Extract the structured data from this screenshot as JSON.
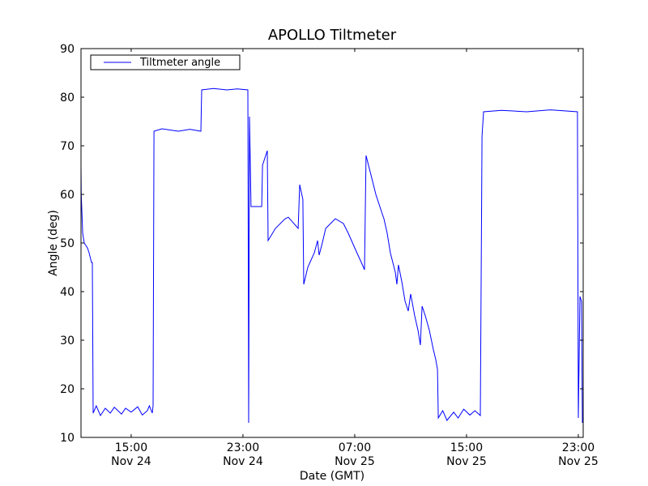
{
  "chart_data": {
    "type": "line",
    "title": "APOLLO Tiltmeter",
    "xlabel": "Date (GMT)",
    "ylabel": "Angle (deg)",
    "x_units": "hours since Nov 24 00:00 GMT",
    "xlim": [
      11.41,
      47.35
    ],
    "ylim": [
      10,
      90
    ],
    "yticks": [
      10,
      20,
      30,
      40,
      50,
      60,
      70,
      80,
      90
    ],
    "xticks": [
      {
        "value": 15,
        "time": "15:00",
        "date": "Nov 24"
      },
      {
        "value": 23,
        "time": "23:00",
        "date": "Nov 24"
      },
      {
        "value": 31,
        "time": "07:00",
        "date": "Nov 25"
      },
      {
        "value": 39,
        "time": "15:00",
        "date": "Nov 25"
      },
      {
        "value": 47,
        "time": "23:00",
        "date": "Nov 25"
      }
    ],
    "grid": false,
    "legend": {
      "position": "top-left",
      "entries": [
        "Tiltmeter angle"
      ]
    },
    "series": [
      {
        "name": "Tiltmeter angle",
        "color": "#0000ff",
        "x": [
          11.41,
          11.43,
          11.53,
          11.64,
          11.87,
          11.99,
          12.16,
          12.22,
          12.28,
          12.5,
          12.8,
          13.15,
          13.5,
          13.8,
          14.31,
          14.6,
          15.0,
          15.47,
          15.8,
          16.16,
          16.3,
          16.51,
          16.57,
          16.63,
          17.2,
          18.37,
          19.2,
          19.99,
          20.05,
          20.9,
          21.85,
          22.6,
          23.35,
          23.41,
          23.47,
          23.58,
          24.34,
          24.4,
          24.74,
          24.8,
          25.32,
          26.02,
          26.25,
          26.95,
          27.06,
          27.29,
          27.35,
          27.64,
          28.11,
          28.34,
          28.45,
          28.68,
          28.92,
          29.61,
          30.19,
          30.54,
          31.0,
          31.47,
          31.7,
          31.81,
          32.16,
          32.51,
          32.97,
          33.09,
          33.32,
          33.55,
          33.9,
          34.02,
          34.13,
          34.37,
          34.6,
          34.83,
          35.0,
          35.29,
          35.53,
          35.7,
          35.82,
          36.05,
          36.34,
          36.63,
          36.8,
          36.92,
          36.98,
          37.3,
          37.6,
          38.08,
          38.4,
          38.8,
          39.24,
          39.6,
          39.99,
          40.11,
          40.22,
          41.5,
          43.3,
          45.0,
          46.94,
          47.0,
          47.12,
          47.23,
          47.29
        ],
        "y": [
          66,
          60,
          52,
          50,
          49,
          48,
          46,
          46,
          15,
          16.5,
          14.5,
          16,
          15,
          16.2,
          14.8,
          16,
          15.2,
          16.3,
          14.6,
          15.5,
          16.5,
          15,
          16.5,
          73,
          73.5,
          73,
          73.4,
          73,
          81.5,
          81.8,
          81.5,
          81.7,
          81.5,
          13,
          76,
          57.5,
          57.5,
          66,
          69,
          50.5,
          53,
          55,
          55.3,
          53,
          62,
          59,
          41.5,
          45,
          48,
          50.5,
          47.5,
          50,
          53,
          55,
          54,
          52,
          49,
          46,
          44.5,
          68,
          64,
          60,
          56,
          55,
          52,
          48,
          44,
          41.5,
          45.5,
          42,
          38,
          36,
          39.5,
          35,
          32,
          29,
          37,
          35,
          32,
          28,
          26,
          24,
          14,
          15.5,
          13.5,
          15.2,
          14,
          15.8,
          14.6,
          15.5,
          14.5,
          72,
          77,
          77.3,
          77,
          77.4,
          77,
          14,
          39,
          38,
          13
        ]
      }
    ]
  }
}
